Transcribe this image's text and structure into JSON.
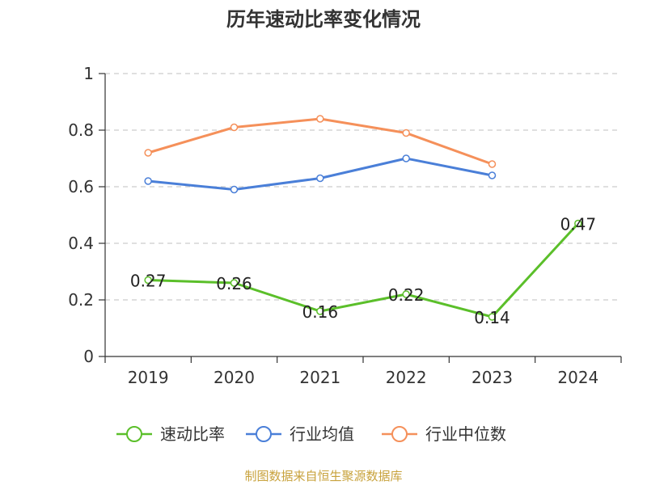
{
  "chart_data": {
    "type": "line",
    "title": "历年速动比率变化情况",
    "categories": [
      "2019",
      "2020",
      "2021",
      "2022",
      "2023",
      "2024"
    ],
    "ylim": [
      0,
      1
    ],
    "yticks": [
      0,
      0.2,
      0.4,
      0.6,
      0.8,
      1
    ],
    "ytick_labels": [
      "0",
      "0.2",
      "0.4",
      "0.6",
      "0.8",
      "1"
    ],
    "grid": true,
    "legend_position": "bottom-center",
    "series": [
      {
        "name": "速动比率",
        "color": "#5bbf2a",
        "values": [
          0.27,
          0.26,
          0.16,
          0.22,
          0.14,
          0.47
        ],
        "labels": [
          "0.27",
          "0.26",
          "0.16",
          "0.22",
          "0.14",
          "0.47"
        ],
        "show_labels": true
      },
      {
        "name": "行业均值",
        "color": "#4a7fd8",
        "values": [
          0.62,
          0.59,
          0.63,
          0.7,
          0.64,
          null
        ],
        "show_labels": false
      },
      {
        "name": "行业中位数",
        "color": "#f5905a",
        "values": [
          0.72,
          0.81,
          0.84,
          0.79,
          0.68,
          null
        ],
        "show_labels": false
      }
    ]
  },
  "source": "制图数据来自恒生聚源数据库"
}
